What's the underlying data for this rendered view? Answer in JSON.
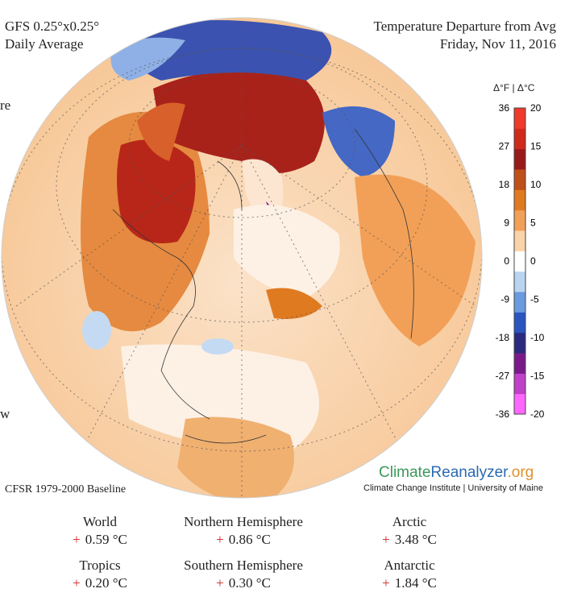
{
  "header": {
    "model_line1": "GFS 0.25°x0.25°",
    "model_line2": "Daily Average",
    "title_line1": "Temperature Departure from Avg",
    "title_line2": "Friday, Nov 11, 2016",
    "cut_left_1": "re",
    "cut_left_2": "w"
  },
  "colorbar": {
    "header": "Δ°F | Δ°C",
    "fahrenheit_ticks": [
      "36",
      "27",
      "18",
      "9",
      "0",
      "-9",
      "-18",
      "-27",
      "-36"
    ],
    "celsius_ticks": [
      "20",
      "15",
      "10",
      "5",
      "0",
      "-5",
      "-10",
      "-15",
      "-20"
    ],
    "colors": [
      "#ff66ff",
      "#c040c8",
      "#7a1a8a",
      "#2a2a80",
      "#2a54c0",
      "#6a9ae0",
      "#b8d4f0",
      "#ffffff",
      "#fbd3a8",
      "#f2a058",
      "#e07a20",
      "#c0501a",
      "#9a1a1a",
      "#d02a1a",
      "#f03a2a"
    ]
  },
  "footer": {
    "baseline": "CFSR 1979-2000 Baseline",
    "brand_climate": "Climate",
    "brand_reanalyzer": "Reanalyzer",
    "brand_org": ".org",
    "brand_sub": "Climate Change Institute | University of Maine"
  },
  "stats": [
    {
      "name": "World",
      "sign": "+",
      "value": "0.59 °C"
    },
    {
      "name": "Northern Hemisphere",
      "sign": "+",
      "value": "0.86 °C"
    },
    {
      "name": "Arctic",
      "sign": "+",
      "value": "3.48 °C"
    },
    {
      "name": "Tropics",
      "sign": "+",
      "value": "0.20 °C"
    },
    {
      "name": "Southern Hemisphere",
      "sign": "+",
      "value": "0.30 °C"
    },
    {
      "name": "Antarctic",
      "sign": "+",
      "value": "1.84 °C"
    }
  ]
}
